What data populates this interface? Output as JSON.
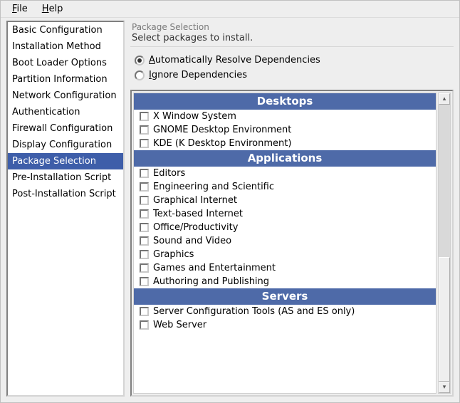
{
  "menubar": {
    "file": "File",
    "file_ul": "F",
    "file_rest": "ile",
    "help": "Help",
    "help_ul": "H",
    "help_rest": "elp"
  },
  "sidebar": {
    "items": [
      "Basic Configuration",
      "Installation Method",
      "Boot Loader Options",
      "Partition Information",
      "Network Configuration",
      "Authentication",
      "Firewall Configuration",
      "Display Configuration",
      "Package Selection",
      "Pre-Installation Script",
      "Post-Installation Script"
    ],
    "selected_index": 8
  },
  "main": {
    "field_label": "Package Selection",
    "subtitle": "Select packages to install.",
    "radios": {
      "auto_ul": "A",
      "auto_rest": "utomatically Resolve Dependencies",
      "ignore_ul": "I",
      "ignore_rest": "gnore Dependencies",
      "selected": "auto"
    },
    "categories": [
      {
        "header": "Desktops",
        "items": [
          "X Window System",
          "GNOME Desktop Environment",
          "KDE (K Desktop Environment)"
        ]
      },
      {
        "header": "Applications",
        "items": [
          "Editors",
          "Engineering and Scientific",
          "Graphical Internet",
          "Text-based Internet",
          "Office/Productivity",
          "Sound and Video",
          "Graphics",
          "Games and Entertainment",
          "Authoring and Publishing"
        ]
      },
      {
        "header": "Servers",
        "items": [
          "Server Configuration Tools (AS and ES only)",
          "Web Server"
        ]
      }
    ],
    "scrollbar": {
      "thumb_top_pct": 55,
      "thumb_height_pct": 45
    }
  },
  "colors": {
    "selection_bg": "#3e5ea9",
    "header_bg": "#4e6aa8",
    "window_bg": "#eeeeee"
  }
}
